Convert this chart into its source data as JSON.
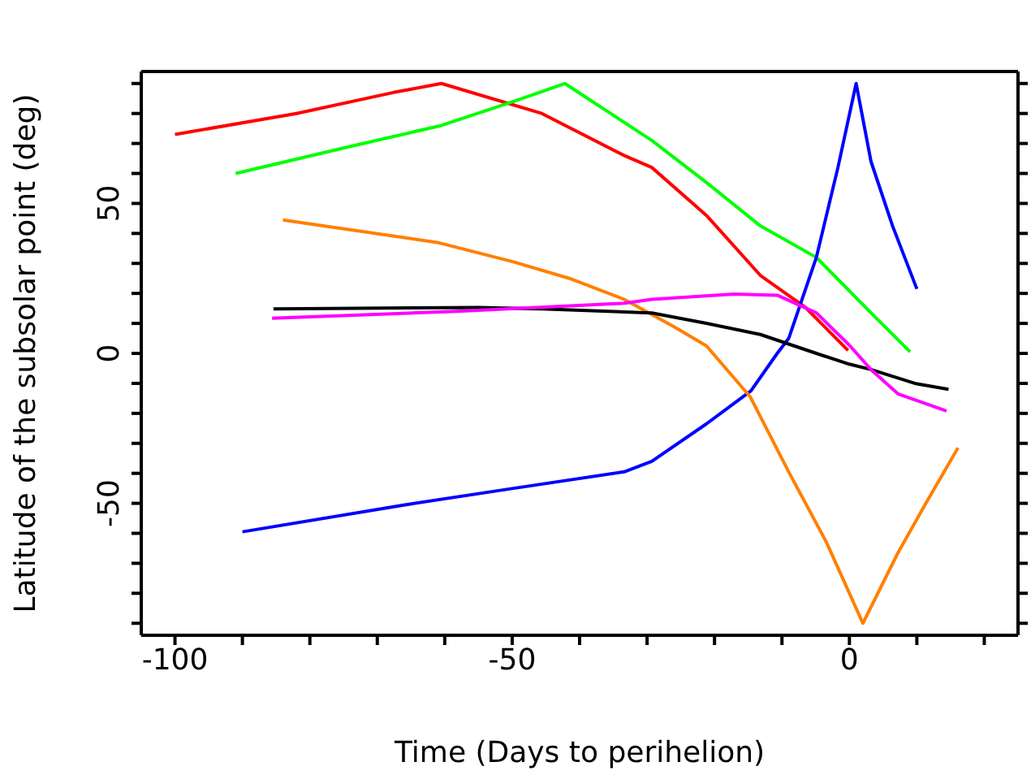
{
  "chart_data": {
    "type": "line",
    "xlabel": "Time (Days to perihelion)",
    "ylabel": "Latitude of the subsolar point (deg)",
    "xlim": [
      -105,
      25
    ],
    "ylim": [
      -94,
      94
    ],
    "xticks": [
      -100,
      {
        "value": -90,
        "label": null
      },
      {
        "value": -80,
        "label": null
      },
      {
        "value": -70,
        "label": null
      },
      {
        "value": -60,
        "label": null
      },
      -50,
      {
        "value": -40,
        "label": null
      },
      {
        "value": -30,
        "label": null
      },
      {
        "value": -20,
        "label": null
      },
      {
        "value": -10,
        "label": null
      },
      0,
      {
        "value": 10,
        "label": null
      },
      {
        "value": 20,
        "label": null
      }
    ],
    "yticks": [
      {
        "value": -90,
        "label": null
      },
      {
        "value": -80,
        "label": null
      },
      {
        "value": -70,
        "label": null
      },
      {
        "value": -60,
        "label": null
      },
      -50,
      {
        "value": -40,
        "label": null
      },
      {
        "value": -30,
        "label": null
      },
      {
        "value": -20,
        "label": null
      },
      {
        "value": -10,
        "label": null
      },
      0,
      {
        "value": 10,
        "label": null
      },
      {
        "value": 20,
        "label": null
      },
      {
        "value": 30,
        "label": null
      },
      {
        "value": 40,
        "label": null
      },
      50,
      {
        "value": 60,
        "label": null
      },
      {
        "value": 70,
        "label": null
      },
      {
        "value": 80,
        "label": null
      },
      {
        "value": 90,
        "label": null
      }
    ],
    "grid": false,
    "legend": false,
    "marker": "none",
    "line_style": "solid",
    "series": [
      {
        "color": "#ff0000",
        "x": [
          -100,
          -82,
          -67.6,
          -60.5,
          -45.6,
          -33.4,
          -29.3,
          -21.2,
          -13.2,
          -6.6,
          -0.2
        ],
        "values": [
          73,
          80,
          87,
          90,
          80,
          66,
          62,
          46,
          26,
          15.5,
          1
        ]
      },
      {
        "color": "#00ff00",
        "x": [
          -91,
          -74,
          -60.5,
          -49.8,
          -42.2,
          -29.3,
          -21.2,
          -13.2,
          -4.9,
          3.2,
          9
        ],
        "values": [
          60,
          69,
          76,
          84,
          90,
          71,
          57,
          42.5,
          32,
          13.5,
          0.5
        ]
      },
      {
        "color": "#0000ff",
        "x": [
          -90,
          -65.9,
          -49.8,
          -33.4,
          -29.3,
          -21.2,
          -14.6,
          -10.7,
          -9,
          -4.9,
          -1.7,
          1,
          3.2,
          6.4,
          10
        ],
        "values": [
          -59.5,
          -50.5,
          -45,
          -39.5,
          -36,
          -23.5,
          -12.5,
          0,
          5,
          32,
          62,
          90,
          64,
          42.5,
          21.5
        ]
      },
      {
        "color": "#ff8000",
        "x": [
          -84,
          -61.1,
          -49.8,
          -41.5,
          -33.4,
          -26.1,
          -21.2,
          -14.7,
          -9,
          -3.4,
          2,
          7.2,
          11.2,
          16.1
        ],
        "values": [
          44.5,
          37,
          30.5,
          25,
          18,
          9,
          2.5,
          -14.5,
          -39.5,
          -63,
          -90,
          -66.5,
          -50.5,
          -31.5
        ]
      },
      {
        "color": "#000000",
        "x": [
          -85.4,
          -65,
          -55,
          -45.6,
          -29.3,
          -21.2,
          -13.2,
          -4.9,
          0,
          3.2,
          9.7,
          14.7
        ],
        "values": [
          14.8,
          15.2,
          15.3,
          14.8,
          13.5,
          10,
          6.3,
          0,
          -3.6,
          -5.4,
          -10,
          -12
        ]
      },
      {
        "color": "#ff00ff",
        "x": [
          -85.6,
          -58.2,
          -33.4,
          -29.3,
          -17.1,
          -10.7,
          -4.9,
          0,
          3.2,
          7.2,
          14.4
        ],
        "values": [
          11.7,
          14,
          16.7,
          18,
          19.8,
          19.4,
          13.5,
          2.7,
          -5.4,
          -13.5,
          -19.2
        ]
      }
    ]
  }
}
